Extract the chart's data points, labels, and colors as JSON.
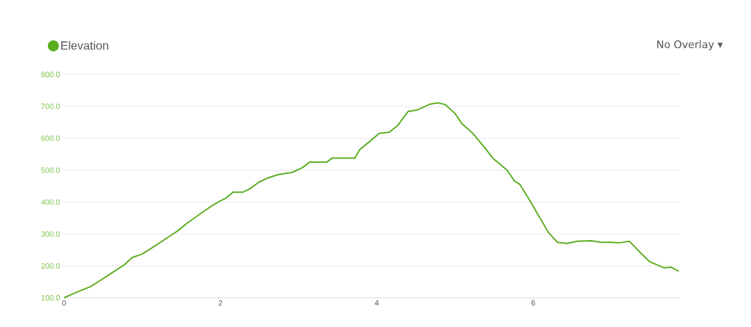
{
  "chart_data": {
    "type": "line",
    "x": [
      0,
      0.16,
      0.34,
      0.47,
      0.6,
      0.78,
      0.87,
      1.0,
      1.14,
      1.32,
      1.45,
      1.58,
      1.76,
      1.89,
      1.98,
      2.07,
      2.16,
      2.29,
      2.38,
      2.49,
      2.6,
      2.74,
      2.92,
      3.05,
      3.14,
      3.36,
      3.43,
      3.63,
      3.72,
      3.78,
      3.89,
      4.03,
      4.16,
      4.27,
      4.4,
      4.52,
      4.67,
      4.78,
      4.87,
      5.0,
      5.09,
      5.23,
      5.4,
      5.49,
      5.67,
      5.76,
      5.83,
      5.94,
      6.07,
      6.2,
      6.31,
      6.43,
      6.56,
      6.74,
      6.87,
      7.0,
      7.09,
      7.23,
      7.36,
      7.49,
      7.67,
      7.76,
      7.86
    ],
    "series": [
      {
        "name": "Elevation",
        "color": "#5aad1f",
        "values": [
          100,
          117,
          135,
          155,
          176,
          205,
          226,
          237,
          259,
          288,
          309,
          335,
          366,
          388,
          401,
          412,
          431,
          431,
          442,
          462,
          475,
          486,
          493,
          508,
          525,
          525,
          538,
          538,
          538,
          564,
          586,
          615,
          619,
          641,
          684,
          689,
          706,
          711,
          706,
          678,
          645,
          615,
          564,
          536,
          499,
          466,
          455,
          412,
          357,
          303,
          274,
          270,
          277,
          279,
          274,
          274,
          272,
          277,
          244,
          213,
          194,
          196,
          183
        ]
      }
    ],
    "xlim": [
      0,
      7.86
    ],
    "ylim": [
      100,
      800
    ],
    "xticks": [
      0,
      2,
      4,
      6
    ],
    "yticks": [
      {
        "value": 100,
        "label": "100.0"
      },
      {
        "value": 200,
        "label": "200.0"
      },
      {
        "value": 300,
        "label": "300.0"
      },
      {
        "value": 400,
        "label": "400.0"
      },
      {
        "value": 500,
        "label": "500.0"
      },
      {
        "value": 600,
        "label": "600.0"
      },
      {
        "value": 700,
        "label": "700.0"
      },
      {
        "value": 800,
        "label": "800.0"
      }
    ],
    "grid": "y",
    "legend": "top left",
    "annotations": [
      "No Overlay ▾"
    ]
  }
}
